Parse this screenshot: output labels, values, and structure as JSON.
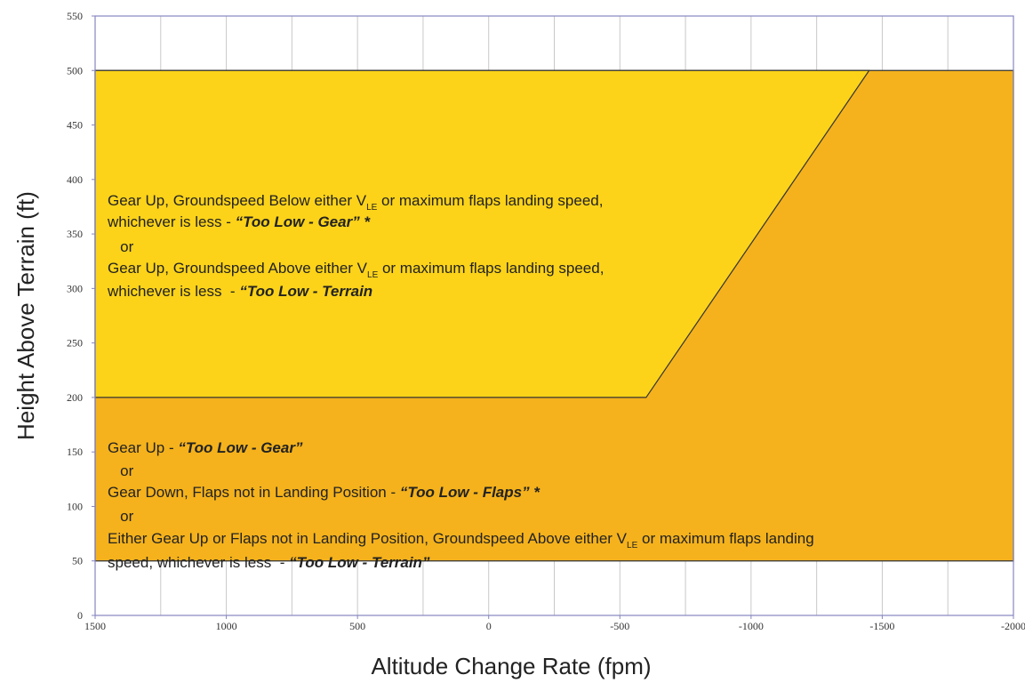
{
  "chart_data": {
    "type": "area",
    "xlabel": "Altitude Change Rate (fpm)",
    "ylabel": "Height Above Terrain (ft)",
    "xlim": [
      1500,
      -2000
    ],
    "ylim": [
      0,
      550
    ],
    "xticks": [
      1500,
      1000,
      500,
      0,
      -500,
      -1000,
      -1500,
      -2000
    ],
    "yticks": [
      0,
      50,
      100,
      150,
      200,
      250,
      300,
      350,
      400,
      450,
      500,
      550
    ],
    "xgrid": [
      1250,
      1000,
      750,
      500,
      250,
      0,
      -250,
      -500,
      -750,
      -1000,
      -1250,
      -1500,
      -1750
    ],
    "series": [
      {
        "color": "#f5b21c",
        "x": [
          1500,
          -2000
        ],
        "upper": [
          500,
          500
        ],
        "lower": [
          50,
          50
        ]
      },
      {
        "color": "#fcd319",
        "x": [
          1500,
          -600,
          -1450
        ],
        "upper": [
          500,
          500,
          500
        ],
        "lower": [
          200,
          200,
          500
        ]
      }
    ],
    "annotations": [
      {
        "lines": [
          [
            {
              "text": "Gear Up, Groundspeed Below either V"
            },
            {
              "text": "LE",
              "style": "sub"
            },
            {
              "text": " or maximum flaps landing speed,"
            }
          ],
          [
            {
              "text": "whichever is less - "
            },
            {
              "text": "“Too Low - Gear” *",
              "style": "bold-italic"
            }
          ],
          [
            {
              "text": "   or"
            }
          ],
          [
            {
              "text": "Gear Up, Groundspeed Above either V"
            },
            {
              "text": "LE",
              "style": "sub"
            },
            {
              "text": " or maximum flaps landing speed,"
            }
          ],
          [
            {
              "text": "whichever is less  - "
            },
            {
              "text": "“Too Low - Terrain",
              "style": "bold-italic"
            }
          ]
        ]
      },
      {
        "lines": [
          [
            {
              "text": "Gear Up - "
            },
            {
              "text": "“Too Low - Gear”",
              "style": "bold-italic"
            }
          ],
          [
            {
              "text": "   or"
            }
          ],
          [
            {
              "text": "Gear Down, Flaps not in Landing Position - "
            },
            {
              "text": "“Too Low - Flaps” *",
              "style": "bold-italic"
            }
          ],
          [
            {
              "text": "   or"
            }
          ],
          [
            {
              "text": "Either Gear Up or Flaps not in Landing Position, Groundspeed Above either V"
            },
            {
              "text": "LE",
              "style": "sub"
            },
            {
              "text": " or maximum flaps landing"
            }
          ],
          [
            {
              "text": "speed, whichever is less  - "
            },
            {
              "text": "“Too Low - Terrain”",
              "style": "bold-italic"
            }
          ]
        ]
      }
    ]
  }
}
